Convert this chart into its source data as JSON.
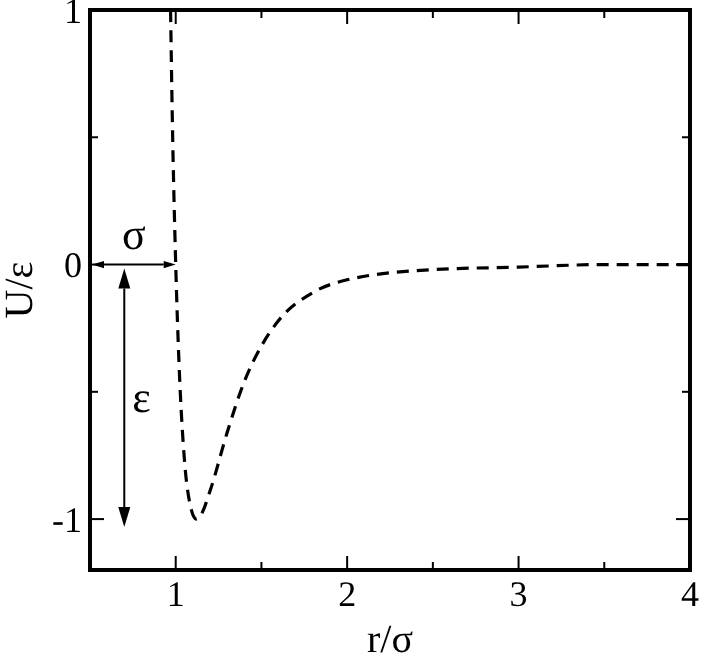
{
  "chart_data": {
    "type": "line",
    "xlabel": "r/σ",
    "ylabel": "U/ε",
    "x": [
      0.97,
      0.98,
      1.0,
      1.02,
      1.05,
      1.08,
      1.12,
      1.15,
      1.2,
      1.3,
      1.4,
      1.5,
      1.6,
      1.8,
      2.0,
      2.5,
      3.0,
      3.5,
      4.0
    ],
    "series": [
      {
        "color": "#000000",
        "values": [
          1.0,
          0.58,
          0,
          -0.4,
          -0.76,
          -0.93,
          -1.0,
          -0.98,
          -0.89,
          -0.66,
          -0.46,
          -0.32,
          -0.22,
          -0.11,
          -0.06,
          -0.02,
          -0.01,
          0,
          0
        ]
      }
    ],
    "line_style": "dashed",
    "marker": "none",
    "grid": false,
    "xlim": [
      0.5,
      4
    ],
    "ylim": [
      -1.2,
      1
    ],
    "xticks": [
      1,
      {
        "value": 1.5,
        "label": null
      },
      2,
      {
        "value": 2.5,
        "label": null
      },
      3,
      {
        "value": 3.5,
        "label": null
      },
      4
    ],
    "yticks": [
      -1,
      {
        "value": -0.5,
        "label": null
      },
      0,
      {
        "value": 0.5,
        "label": null
      },
      1
    ],
    "annotations": [
      {
        "text": "σ",
        "x": 1,
        "y": 0
      },
      {
        "text": "ε",
        "x": 0.7,
        "y": -1
      }
    ]
  }
}
